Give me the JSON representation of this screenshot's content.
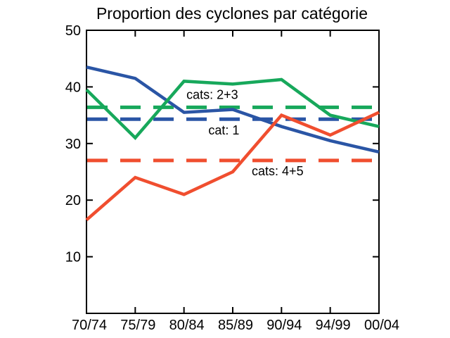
{
  "colors": {
    "cat1": "#2a55a5",
    "cats23": "#17a85b",
    "cats45": "#f04e2f",
    "axis": "#000000",
    "background": "#ffffff",
    "text": "#000000"
  },
  "chart_data": {
    "type": "line",
    "title": "Proportion des cyclones par catégorie",
    "categories": [
      "70/74",
      "75/79",
      "80/84",
      "85/89",
      "90/94",
      "94/99",
      "00/04"
    ],
    "series": [
      {
        "name": "cat: 1",
        "color_key": "cat1",
        "style": "solid",
        "values": [
          43.5,
          41.5,
          35.5,
          36.0,
          33.0,
          30.5,
          28.5
        ]
      },
      {
        "name": "cats: 2+3",
        "color_key": "cats23",
        "style": "solid",
        "values": [
          39.5,
          31.0,
          41.0,
          40.5,
          41.3,
          35.0,
          33.0
        ]
      },
      {
        "name": "cats: 4+5",
        "color_key": "cats45",
        "style": "solid",
        "values": [
          16.5,
          24.0,
          21.0,
          25.0,
          35.0,
          31.5,
          35.5
        ]
      }
    ],
    "reference_lines": [
      {
        "label": "cats: 2+3",
        "color_key": "cats23",
        "style": "dashed",
        "value": 36.4
      },
      {
        "label": "cat: 1",
        "color_key": "cat1",
        "style": "dashed",
        "value": 34.3
      },
      {
        "label": "cats: 4+5",
        "color_key": "cats45",
        "style": "dashed",
        "value": 27.0
      }
    ],
    "annotations": [
      {
        "text": "cats: 2+3",
        "x_index": 2.05,
        "y_value": 37.9
      },
      {
        "text": "cat: 1",
        "x_index": 2.5,
        "y_value": 31.6
      },
      {
        "text": "cats: 4+5",
        "x_index": 3.39,
        "y_value": 24.4
      }
    ],
    "xlabel": "",
    "ylabel": "",
    "y_ticks": [
      10,
      20,
      30,
      40,
      50
    ],
    "ylim": [
      0,
      50
    ],
    "grid": false,
    "legend": "none (labels drawn as in-plot annotations)"
  }
}
